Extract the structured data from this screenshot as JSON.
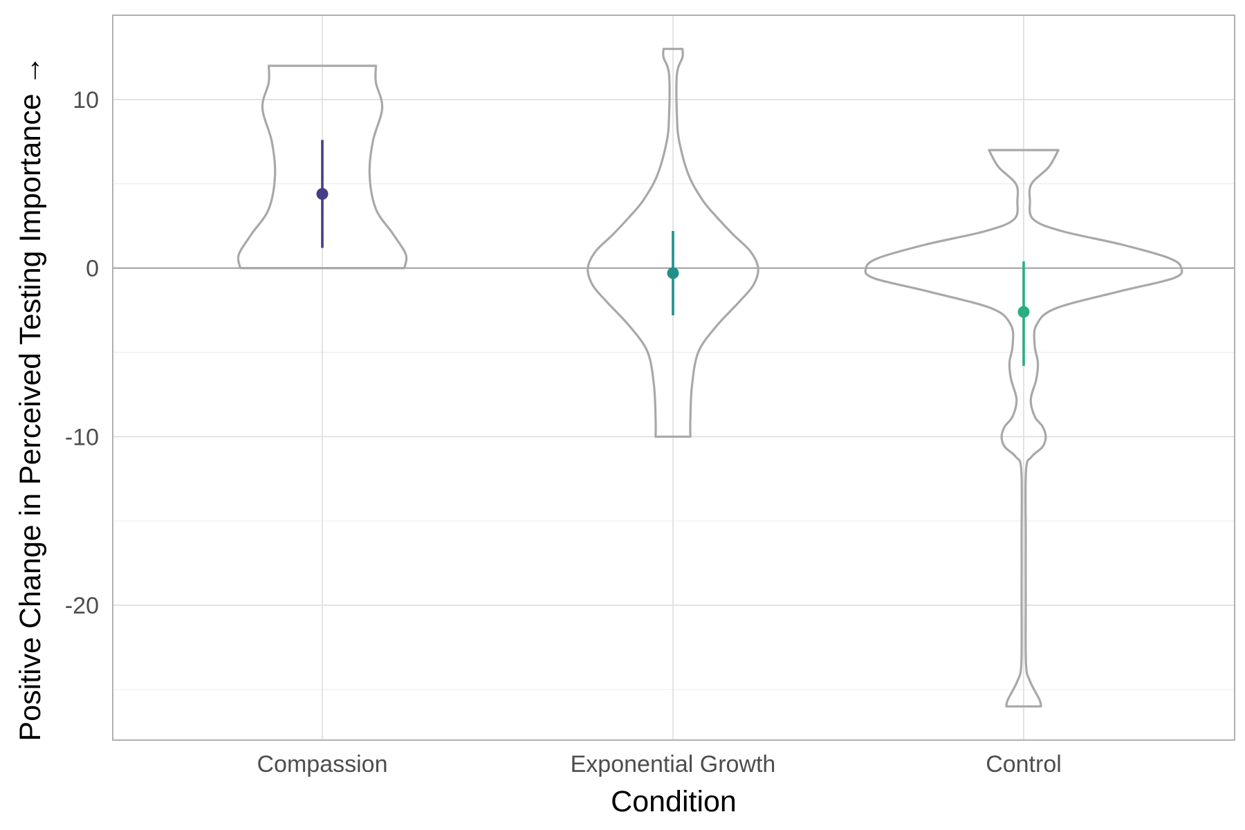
{
  "chart_data": {
    "type": "violin",
    "xlabel": "Condition",
    "ylabel": "Positive Change in Perceived Testing Importance →",
    "ylim": [
      -28,
      15
    ],
    "y_ticks": [
      10,
      0,
      -10,
      -20
    ],
    "y_tick_labels": [
      "10",
      "0",
      "-10",
      "-20"
    ],
    "reference_line_y": 0,
    "grid": true,
    "categories": [
      "Compassion",
      "Exponential Growth",
      "Control"
    ],
    "series": [
      {
        "category": "Compassion",
        "color": "#433e85",
        "mean": 4.4,
        "ci_low": 1.2,
        "ci_high": 7.6,
        "y_min": 0,
        "y_max": 12,
        "density_profile": [
          [
            0,
            0.52
          ],
          [
            0.8,
            0.53
          ],
          [
            2,
            0.45
          ],
          [
            3.5,
            0.34
          ],
          [
            5.5,
            0.3
          ],
          [
            7.5,
            0.32
          ],
          [
            9.5,
            0.38
          ],
          [
            11,
            0.34
          ],
          [
            12,
            0.34
          ]
        ]
      },
      {
        "category": "Exponential Growth",
        "color": "#21908c",
        "mean": -0.3,
        "ci_low": -2.8,
        "ci_high": 2.2,
        "y_min": -10,
        "y_max": 13,
        "density_profile": [
          [
            -10,
            0.11
          ],
          [
            -9,
            0.11
          ],
          [
            -7,
            0.12
          ],
          [
            -5,
            0.16
          ],
          [
            -3.5,
            0.27
          ],
          [
            -2,
            0.42
          ],
          [
            -1,
            0.51
          ],
          [
            0,
            0.54
          ],
          [
            1,
            0.49
          ],
          [
            2,
            0.38
          ],
          [
            3,
            0.28
          ],
          [
            4,
            0.19
          ],
          [
            5.5,
            0.1
          ],
          [
            7.5,
            0.04
          ],
          [
            9,
            0.025
          ],
          [
            11.5,
            0.025
          ],
          [
            12.5,
            0.06
          ],
          [
            13,
            0.06
          ]
        ]
      },
      {
        "category": "Control",
        "color": "#28ae80",
        "mean": -2.6,
        "ci_low": -5.8,
        "ci_high": 0.4,
        "y_min": -26,
        "y_max": 7,
        "density_profile": [
          [
            -26,
            0.11
          ],
          [
            -25.6,
            0.1
          ],
          [
            -24.5,
            0.04
          ],
          [
            -23.5,
            0.015
          ],
          [
            -20,
            0.013
          ],
          [
            -16,
            0.013
          ],
          [
            -12,
            0.015
          ],
          [
            -11.2,
            0.05
          ],
          [
            -10.6,
            0.12
          ],
          [
            -10,
            0.14
          ],
          [
            -9.4,
            0.12
          ],
          [
            -8.8,
            0.07
          ],
          [
            -7.8,
            0.045
          ],
          [
            -6.6,
            0.08
          ],
          [
            -5.6,
            0.09
          ],
          [
            -4.6,
            0.07
          ],
          [
            -3.4,
            0.08
          ],
          [
            -2.4,
            0.2
          ],
          [
            -1.4,
            0.6
          ],
          [
            -0.6,
            0.95
          ],
          [
            0,
            1.0
          ],
          [
            0.6,
            0.92
          ],
          [
            1.4,
            0.62
          ],
          [
            2.2,
            0.24
          ],
          [
            2.9,
            0.06
          ],
          [
            4,
            0.04
          ],
          [
            5,
            0.05
          ],
          [
            6,
            0.16
          ],
          [
            7,
            0.22
          ]
        ]
      }
    ]
  }
}
